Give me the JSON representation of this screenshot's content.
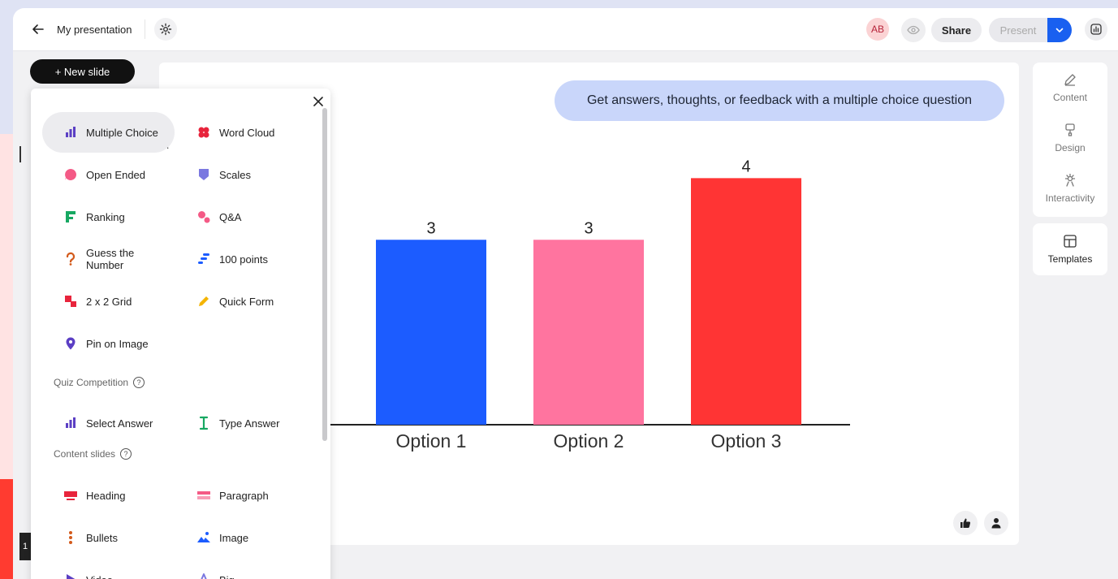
{
  "topbar": {
    "title": "My presentation",
    "avatar_initials": "AB",
    "share_label": "Share",
    "present_label": "Present"
  },
  "new_slide_label": "+ New slide",
  "canvas": {
    "hint": "Get answers, thoughts, or feedback with a multiple choice question"
  },
  "chart_data": {
    "type": "bar",
    "categories": [
      "Option 1",
      "Option 2",
      "Option 3"
    ],
    "values": [
      3,
      3,
      4
    ],
    "colors": [
      "#1c5cff",
      "#ff749f",
      "#ff3434"
    ],
    "ylim": [
      0,
      4.4
    ],
    "grid": false,
    "legend": "none"
  },
  "right_panel": {
    "content_label": "Content",
    "design_label": "Design",
    "interactivity_label": "Interactivity",
    "templates_label": "Templates"
  },
  "menu": {
    "interactive_items": [
      {
        "label": "Multiple Choice",
        "icon": "bar-chart-icon",
        "color": "#5b3fc4"
      },
      {
        "label": "Word Cloud",
        "icon": "cloud-icon",
        "color": "#e8243c"
      },
      {
        "label": "Open Ended",
        "icon": "speech-bubble-icon",
        "color": "#f45a86"
      },
      {
        "label": "Scales",
        "icon": "shield-icon",
        "color": "#7b78e0"
      },
      {
        "label": "Ranking",
        "icon": "ranking-icon",
        "color": "#17a862"
      },
      {
        "label": "Q&A",
        "icon": "qa-icon",
        "color": "#f45a86"
      },
      {
        "label": "Guess the Number",
        "icon": "question-mark-icon",
        "color": "#d35a1b"
      },
      {
        "label": "100 points",
        "icon": "points-icon",
        "color": "#1c5cff"
      },
      {
        "label": "2 x 2 Grid",
        "icon": "grid-icon",
        "color": "#e8243c"
      },
      {
        "label": "Quick Form",
        "icon": "pencil-icon",
        "color": "#f4b400"
      },
      {
        "label": "Pin on Image",
        "icon": "pin-icon",
        "color": "#5b3fc4"
      }
    ],
    "quiz_heading": "Quiz Competition",
    "quiz_items": [
      {
        "label": "Select Answer",
        "icon": "bar-chart-icon",
        "color": "#5b3fc4"
      },
      {
        "label": "Type Answer",
        "icon": "text-cursor-icon",
        "color": "#17a862"
      }
    ],
    "content_heading": "Content slides",
    "content_items": [
      {
        "label": "Heading",
        "icon": "heading-icon",
        "color": "#e8243c"
      },
      {
        "label": "Paragraph",
        "icon": "paragraph-icon",
        "color": "#f45a86"
      },
      {
        "label": "Bullets",
        "icon": "bullets-icon",
        "color": "#d35a1b"
      },
      {
        "label": "Image",
        "icon": "image-icon",
        "color": "#1c5cff"
      },
      {
        "label": "Video",
        "icon": "play-icon",
        "color": "#5b3fc4"
      },
      {
        "label": "Big",
        "icon": "letter-a-icon",
        "color": "#7b78e0"
      }
    ]
  },
  "slide_number": "1"
}
